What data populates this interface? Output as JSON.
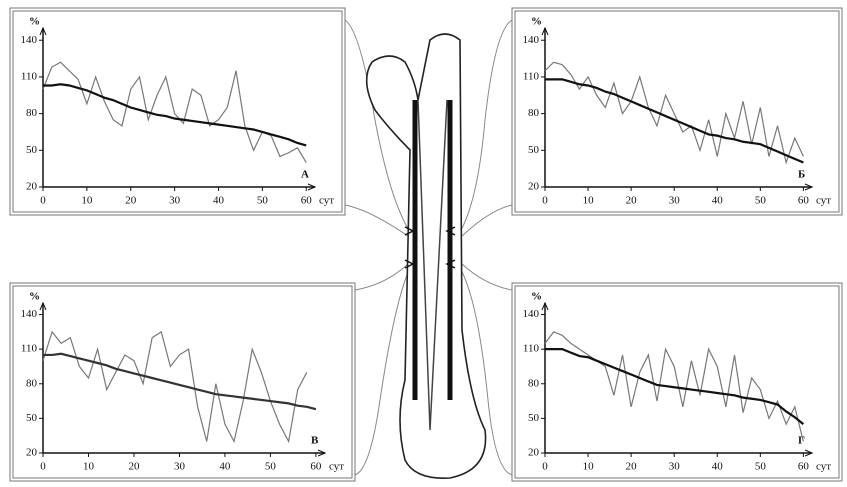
{
  "chart_data": [
    {
      "type": "line",
      "label": "А",
      "ylabel": "%",
      "xlabel": "сут",
      "xlim": [
        0,
        62
      ],
      "ylim": [
        20,
        150
      ],
      "xticks": [
        0,
        10,
        20,
        30,
        40,
        50,
        60
      ],
      "yticks": [
        20,
        50,
        80,
        110,
        140
      ],
      "x": [
        0,
        2,
        4,
        6,
        8,
        10,
        12,
        14,
        16,
        18,
        20,
        22,
        24,
        26,
        28,
        30,
        32,
        34,
        36,
        38,
        40,
        42,
        44,
        46,
        48,
        50,
        52,
        54,
        56,
        58,
        60
      ],
      "series": [
        {
          "color": "#777777",
          "values": [
            100,
            118,
            122,
            115,
            108,
            88,
            110,
            90,
            75,
            70,
            100,
            110,
            75,
            95,
            110,
            80,
            72,
            100,
            95,
            70,
            75,
            85,
            115,
            70,
            50,
            65,
            62,
            45,
            48,
            52,
            40
          ]
        },
        {
          "color": "#111111",
          "values": [
            103,
            103,
            104,
            103,
            101,
            99,
            96,
            93,
            91,
            88,
            85,
            83,
            81,
            79,
            78,
            76,
            75,
            74,
            73,
            72,
            71,
            70,
            69,
            68,
            67,
            65,
            63,
            61,
            59,
            56,
            54
          ]
        }
      ]
    },
    {
      "type": "line",
      "label": "Б",
      "ylabel": "%",
      "xlabel": "сут",
      "xlim": [
        0,
        62
      ],
      "ylim": [
        20,
        150
      ],
      "xticks": [
        0,
        10,
        20,
        30,
        40,
        50,
        60
      ],
      "yticks": [
        20,
        50,
        80,
        110,
        140
      ],
      "x": [
        0,
        2,
        4,
        6,
        8,
        10,
        12,
        14,
        16,
        18,
        20,
        22,
        24,
        26,
        28,
        30,
        32,
        34,
        36,
        38,
        40,
        42,
        44,
        46,
        48,
        50,
        52,
        54,
        56,
        58,
        60
      ],
      "series": [
        {
          "color": "#777777",
          "values": [
            115,
            122,
            120,
            112,
            100,
            110,
            95,
            85,
            105,
            80,
            90,
            110,
            85,
            70,
            95,
            80,
            65,
            70,
            50,
            75,
            45,
            80,
            60,
            90,
            55,
            85,
            45,
            70,
            40,
            60,
            45
          ]
        },
        {
          "color": "#111111",
          "values": [
            108,
            108,
            108,
            106,
            104,
            103,
            101,
            98,
            96,
            93,
            90,
            87,
            84,
            81,
            78,
            75,
            72,
            69,
            66,
            63,
            62,
            60,
            59,
            57,
            56,
            55,
            52,
            49,
            46,
            43,
            40
          ]
        }
      ]
    },
    {
      "type": "line",
      "label": "В",
      "ylabel": "%",
      "xlabel": "сут",
      "xlim": [
        0,
        62
      ],
      "ylim": [
        20,
        150
      ],
      "xticks": [
        0,
        10,
        20,
        30,
        40,
        50,
        60
      ],
      "yticks": [
        20,
        50,
        80,
        110,
        140
      ],
      "x": [
        0,
        2,
        4,
        6,
        8,
        10,
        12,
        14,
        16,
        18,
        20,
        22,
        24,
        26,
        28,
        30,
        32,
        34,
        36,
        38,
        40,
        42,
        44,
        46,
        48,
        50,
        52,
        54,
        56,
        58,
        60
      ],
      "series": [
        {
          "color": "#777777",
          "values": [
            100,
            125,
            115,
            120,
            95,
            85,
            110,
            75,
            90,
            105,
            100,
            80,
            120,
            125,
            95,
            105,
            110,
            60,
            30,
            80,
            45,
            30,
            65,
            110,
            90,
            65,
            45,
            30,
            75,
            90,
            null
          ]
        },
        {
          "color": "#333333",
          "values": [
            105,
            105,
            106,
            104,
            102,
            100,
            98,
            96,
            93,
            91,
            89,
            87,
            85,
            83,
            81,
            79,
            77,
            75,
            73,
            71,
            70,
            69,
            68,
            67,
            66,
            65,
            64,
            63,
            61,
            60,
            58
          ]
        }
      ]
    },
    {
      "type": "line",
      "label": "Г",
      "ylabel": "%",
      "xlabel": "сут",
      "xlim": [
        0,
        62
      ],
      "ylim": [
        20,
        150
      ],
      "xticks": [
        0,
        10,
        20,
        30,
        40,
        50,
        60
      ],
      "yticks": [
        20,
        50,
        80,
        110,
        140
      ],
      "x": [
        0,
        2,
        4,
        6,
        8,
        10,
        12,
        14,
        16,
        18,
        20,
        22,
        24,
        26,
        28,
        30,
        32,
        34,
        36,
        38,
        40,
        42,
        44,
        46,
        48,
        50,
        52,
        54,
        56,
        58,
        60
      ],
      "series": [
        {
          "color": "#777777",
          "values": [
            115,
            125,
            122,
            115,
            110,
            105,
            100,
            95,
            70,
            105,
            60,
            90,
            105,
            65,
            110,
            95,
            60,
            100,
            70,
            110,
            95,
            60,
            105,
            55,
            85,
            75,
            50,
            65,
            45,
            60,
            30
          ]
        },
        {
          "color": "#111111",
          "values": [
            110,
            110,
            110,
            107,
            104,
            103,
            100,
            97,
            94,
            91,
            88,
            85,
            82,
            79,
            78,
            77,
            76,
            75,
            74,
            73,
            72,
            71,
            70,
            68,
            67,
            66,
            64,
            62,
            56,
            51,
            45
          ]
        }
      ]
    }
  ]
}
